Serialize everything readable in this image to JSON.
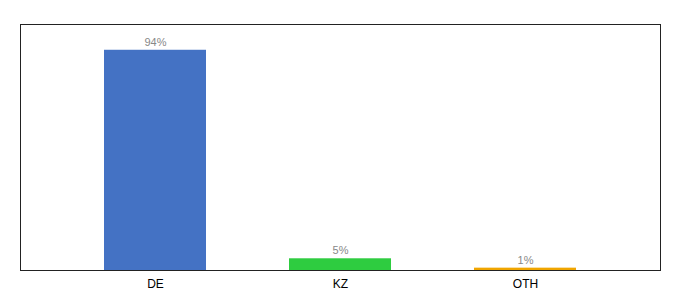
{
  "chart_data": {
    "type": "bar",
    "categories": [
      "DE",
      "KZ",
      "OTH"
    ],
    "values": [
      94,
      5,
      1
    ],
    "value_labels": [
      "94%",
      "5%",
      "1%"
    ],
    "colors": [
      "#4472c4",
      "#2ecc40",
      "#f0a500"
    ],
    "ylim": [
      0,
      105
    ],
    "data_labels": true,
    "tick_labels": "x",
    "grid": false
  }
}
